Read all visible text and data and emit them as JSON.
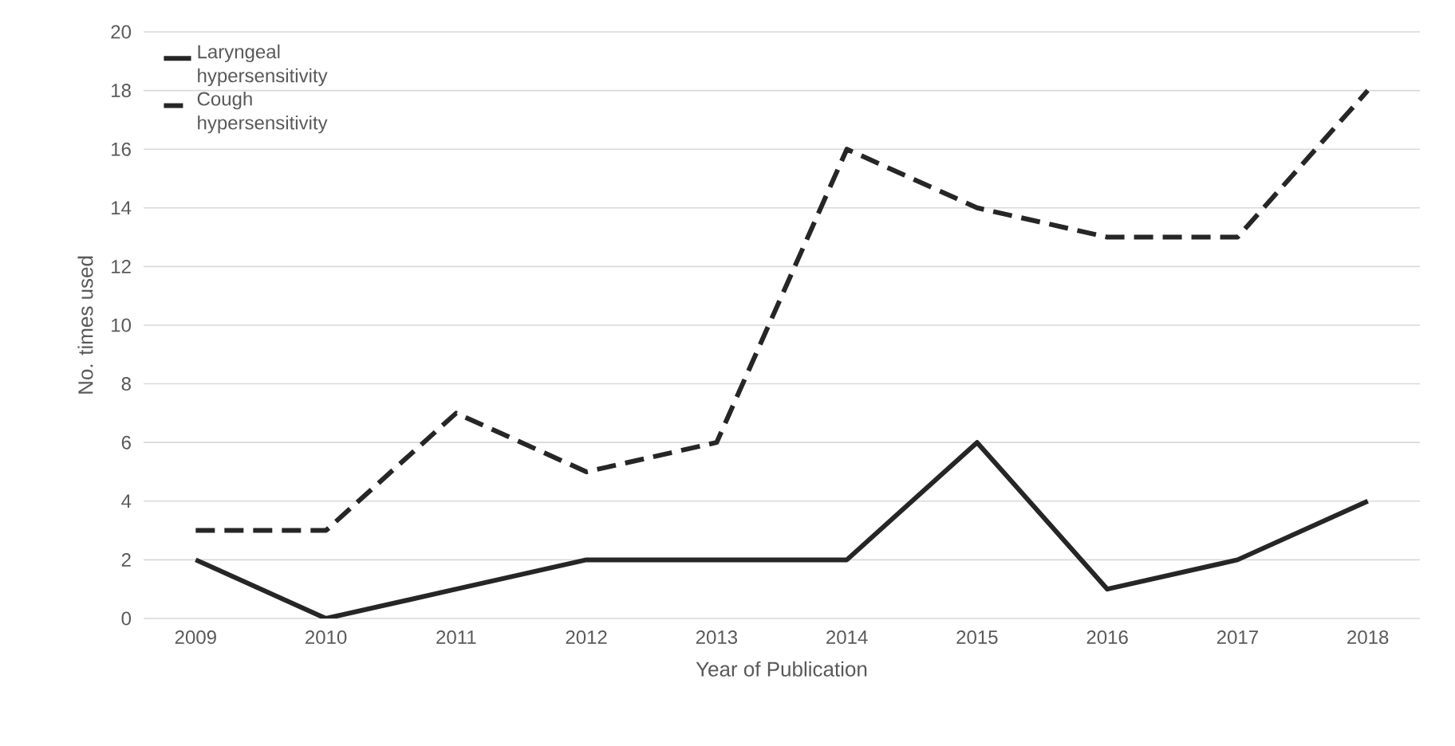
{
  "chart_data": {
    "type": "line",
    "xlabel": "Year of Publication",
    "ylabel": "No. times used",
    "categories": [
      "2009",
      "2010",
      "2011",
      "2012",
      "2013",
      "2014",
      "2015",
      "2016",
      "2017",
      "2018"
    ],
    "series": [
      {
        "name": "Laryngeal hypersensitivity",
        "color": "#262626",
        "line_style": "solid",
        "values": [
          2,
          0,
          1,
          2,
          2,
          2,
          6,
          1,
          2,
          4
        ]
      },
      {
        "name": "Cough hypersensitivity",
        "color": "#262626",
        "line_style": "dashed",
        "values": [
          3,
          3,
          7,
          5,
          6,
          16,
          14,
          13,
          13,
          18
        ]
      }
    ],
    "ylim": [
      0,
      20
    ],
    "yticks": [
      0,
      2,
      4,
      6,
      8,
      10,
      12,
      14,
      16,
      18,
      20
    ],
    "grid": "y",
    "legend": "top left",
    "marker": "none"
  }
}
